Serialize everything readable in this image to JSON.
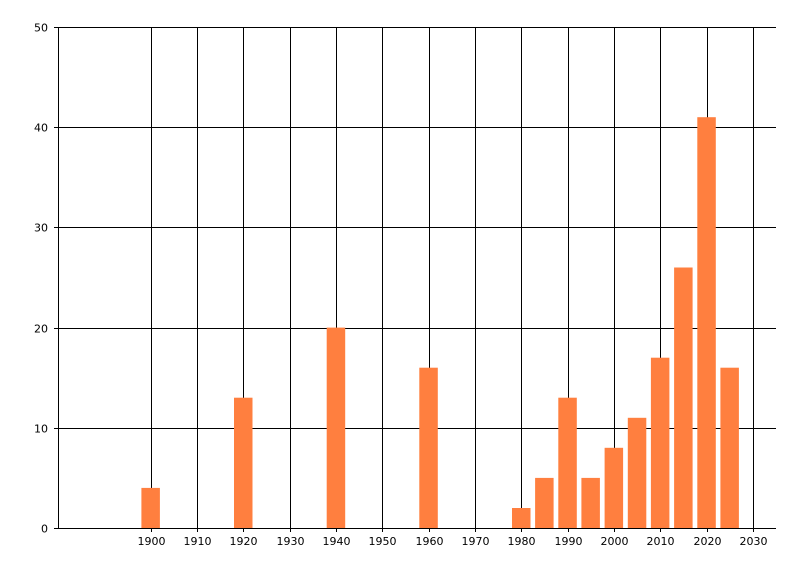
{
  "chart_data": {
    "type": "bar",
    "title": "",
    "xlabel": "",
    "ylabel": "",
    "grid": true,
    "x": [
      1900,
      1920,
      1940,
      1960,
      1980,
      1985,
      1990,
      1995,
      2000,
      2005,
      2010,
      2015,
      2020,
      2025
    ],
    "values": [
      4,
      13,
      20,
      16,
      2,
      5,
      13,
      5,
      8,
      11,
      17,
      26,
      41,
      16
    ],
    "xlim": [
      1880,
      2035
    ],
    "ylim": [
      0,
      50
    ],
    "x_ticks": [
      "1900",
      "1910",
      "1920",
      "1930",
      "1940",
      "1950",
      "1960",
      "1970",
      "1980",
      "1990",
      "2000",
      "2010",
      "2020",
      "2030"
    ],
    "y_ticks": [
      "0",
      "10",
      "20",
      "30",
      "40",
      "50"
    ],
    "bar_color": "#ff7f3f"
  }
}
